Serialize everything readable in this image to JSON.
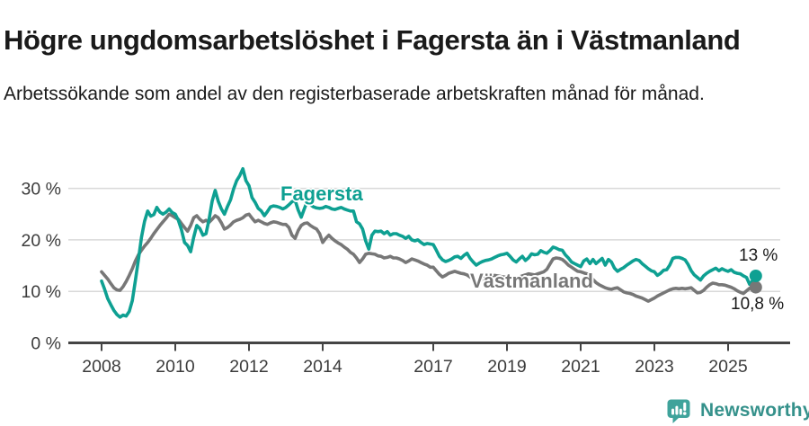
{
  "header": {
    "title": "Högre ungdomsarbetslöshet i Fagersta än i Västmanland",
    "subtitle": "Arbetssökande som andel av den registerbaserade arbetskraften månad för månad."
  },
  "colors": {
    "background": "#FFFFFF",
    "text": "#1A1A1A",
    "axis_text": "#3C3C3C",
    "axis_line": "#444444",
    "gridline": "#D9D9D9",
    "fagersta": "#0EA092",
    "vastmanland": "#777777",
    "logo_teal": "#3FA39B",
    "logo_text": "#35918B"
  },
  "chart_data": {
    "type": "line",
    "unit": "% av registerbaserad arbetskraft",
    "grid": "horizontal",
    "legend_position": "inline-labels",
    "x_ticks": [
      2008,
      2010,
      2012,
      2014,
      2017,
      2019,
      2021,
      2023,
      2025
    ],
    "y_ticks": [
      0,
      10,
      20,
      30
    ],
    "y_tick_labels": [
      "0 %",
      "10 %",
      "20 %",
      "30 %"
    ],
    "ylim": [
      0,
      35
    ],
    "xlim": [
      2007.1,
      2026.7
    ],
    "start_year": 2008,
    "points_per_year": 12,
    "series": [
      {
        "name": "Fagersta",
        "color": "#0EA092",
        "end_label": "13 %",
        "end_value": 13.0,
        "values": [
          12.0,
          10.4,
          8.6,
          7.4,
          6.3,
          5.5,
          5.0,
          5.4,
          5.2,
          6.1,
          8.2,
          12.1,
          16.2,
          20.5,
          23.6,
          25.6,
          24.6,
          24.9,
          26.3,
          25.4,
          25.0,
          25.4,
          26.0,
          25.3,
          25.0,
          23.8,
          22.0,
          19.5,
          18.9,
          17.7,
          20.5,
          22.8,
          22.2,
          20.9,
          21.2,
          24.0,
          27.5,
          29.6,
          27.5,
          26.0,
          25.0,
          26.5,
          27.8,
          29.9,
          31.5,
          32.5,
          33.8,
          31.5,
          30.5,
          28.2,
          27.3,
          26.1,
          25.6,
          24.7,
          25.5,
          26.4,
          26.6,
          26.5,
          26.3,
          26.0,
          26.3,
          26.8,
          27.4,
          27.7,
          25.8,
          24.4,
          26.0,
          27.5,
          26.8,
          26.4,
          26.2,
          26.1,
          26.2,
          26.5,
          26.3,
          26.0,
          25.9,
          26.1,
          26.3,
          26.0,
          25.8,
          25.6,
          25.6,
          23.5,
          23.1,
          22.1,
          19.8,
          18.2,
          20.9,
          21.7,
          21.6,
          21.7,
          21.2,
          21.6,
          20.9,
          21.2,
          21.2,
          20.9,
          20.7,
          20.3,
          20.7,
          20.0,
          19.8,
          20.0,
          19.5,
          19.1,
          19.3,
          19.2,
          19.1,
          18.0,
          16.8,
          16.1,
          15.8,
          16.0,
          16.3,
          16.7,
          16.8,
          16.4,
          17.0,
          17.4,
          16.4,
          15.7,
          15.1,
          15.5,
          15.8,
          16.0,
          16.1,
          16.3,
          16.6,
          16.9,
          17.1,
          17.2,
          17.4,
          16.8,
          16.1,
          15.7,
          16.3,
          16.8,
          16.0,
          16.5,
          17.3,
          17.1,
          17.2,
          17.9,
          17.6,
          17.4,
          17.9,
          18.6,
          18.4,
          18.1,
          18.0,
          17.1,
          16.5,
          15.7,
          15.4,
          15.1,
          14.8,
          15.9,
          16.3,
          15.4,
          16.2,
          15.4,
          15.9,
          16.4,
          15.1,
          16.2,
          15.7,
          14.5,
          13.9,
          14.3,
          14.6,
          15.1,
          15.5,
          15.9,
          16.2,
          16.0,
          15.4,
          14.9,
          14.4,
          14.0,
          13.8,
          13.1,
          13.5,
          14.1,
          14.2,
          15.1,
          16.4,
          16.6,
          16.6,
          16.4,
          16.1,
          15.2,
          14.0,
          13.2,
          12.7,
          12.2,
          13.0,
          13.5,
          13.9,
          14.2,
          14.5,
          14.0,
          14.4,
          14.1,
          13.9,
          14.2,
          13.7,
          13.5,
          13.4,
          13.0,
          12.7,
          11.4,
          12.1,
          13.0
        ]
      },
      {
        "name": "Västmanland",
        "color": "#777777",
        "end_label": "10,8 %",
        "end_value": 10.8,
        "values": [
          13.8,
          13.1,
          12.4,
          11.5,
          10.7,
          10.3,
          10.2,
          10.9,
          11.9,
          13.1,
          14.4,
          15.9,
          17.1,
          18.0,
          18.8,
          19.5,
          20.3,
          21.2,
          22.0,
          22.8,
          23.5,
          24.2,
          25.0,
          24.7,
          24.3,
          24.0,
          23.2,
          22.4,
          21.7,
          22.8,
          24.3,
          24.7,
          24.0,
          23.5,
          23.8,
          23.4,
          24.0,
          24.7,
          24.3,
          23.3,
          22.1,
          22.4,
          22.9,
          23.5,
          23.8,
          24.0,
          24.3,
          24.8,
          25.0,
          24.2,
          23.5,
          23.8,
          23.5,
          23.2,
          23.0,
          23.3,
          23.5,
          23.4,
          23.2,
          23.0,
          23.0,
          22.4,
          20.9,
          20.3,
          21.8,
          22.8,
          23.2,
          23.3,
          22.8,
          22.4,
          22.1,
          21.2,
          19.5,
          20.3,
          20.9,
          20.3,
          19.8,
          19.4,
          19.1,
          18.6,
          18.2,
          17.6,
          17.2,
          16.5,
          15.6,
          16.3,
          17.2,
          17.4,
          17.3,
          17.2,
          16.9,
          16.8,
          16.5,
          16.6,
          16.8,
          16.5,
          16.5,
          16.3,
          16.0,
          15.6,
          15.9,
          16.3,
          16.1,
          15.9,
          15.6,
          15.3,
          15.1,
          14.7,
          14.7,
          14.0,
          13.3,
          12.8,
          13.1,
          13.5,
          13.7,
          13.9,
          13.7,
          13.5,
          13.4,
          13.2,
          12.8,
          12.4,
          11.9,
          12.1,
          12.4,
          12.6,
          12.8,
          13.0,
          13.1,
          13.0,
          12.9,
          12.8,
          12.7,
          12.5,
          12.4,
          12.6,
          12.8,
          13.0,
          13.2,
          13.4,
          13.3,
          13.2,
          13.4,
          13.6,
          13.8,
          14.3,
          15.3,
          16.3,
          16.5,
          16.4,
          16.2,
          15.7,
          15.1,
          14.7,
          14.3,
          13.9,
          13.8,
          13.6,
          13.4,
          12.9,
          12.3,
          11.7,
          11.3,
          11.0,
          10.7,
          10.5,
          10.4,
          10.6,
          10.7,
          10.3,
          9.9,
          9.7,
          9.6,
          9.4,
          9.1,
          8.9,
          8.7,
          8.4,
          8.1,
          8.4,
          8.7,
          9.1,
          9.4,
          9.7,
          10.0,
          10.3,
          10.5,
          10.6,
          10.5,
          10.6,
          10.5,
          10.6,
          10.7,
          10.2,
          9.7,
          9.8,
          10.2,
          10.8,
          11.3,
          11.6,
          11.5,
          11.3,
          11.3,
          11.2,
          11.0,
          10.8,
          10.5,
          10.1,
          9.8,
          9.6,
          10.1,
          10.6,
          11.0,
          10.8
        ]
      }
    ]
  },
  "footer": {
    "brand": "Newsworthy",
    "logo_icon": "bar-chart-speech-bubble"
  }
}
